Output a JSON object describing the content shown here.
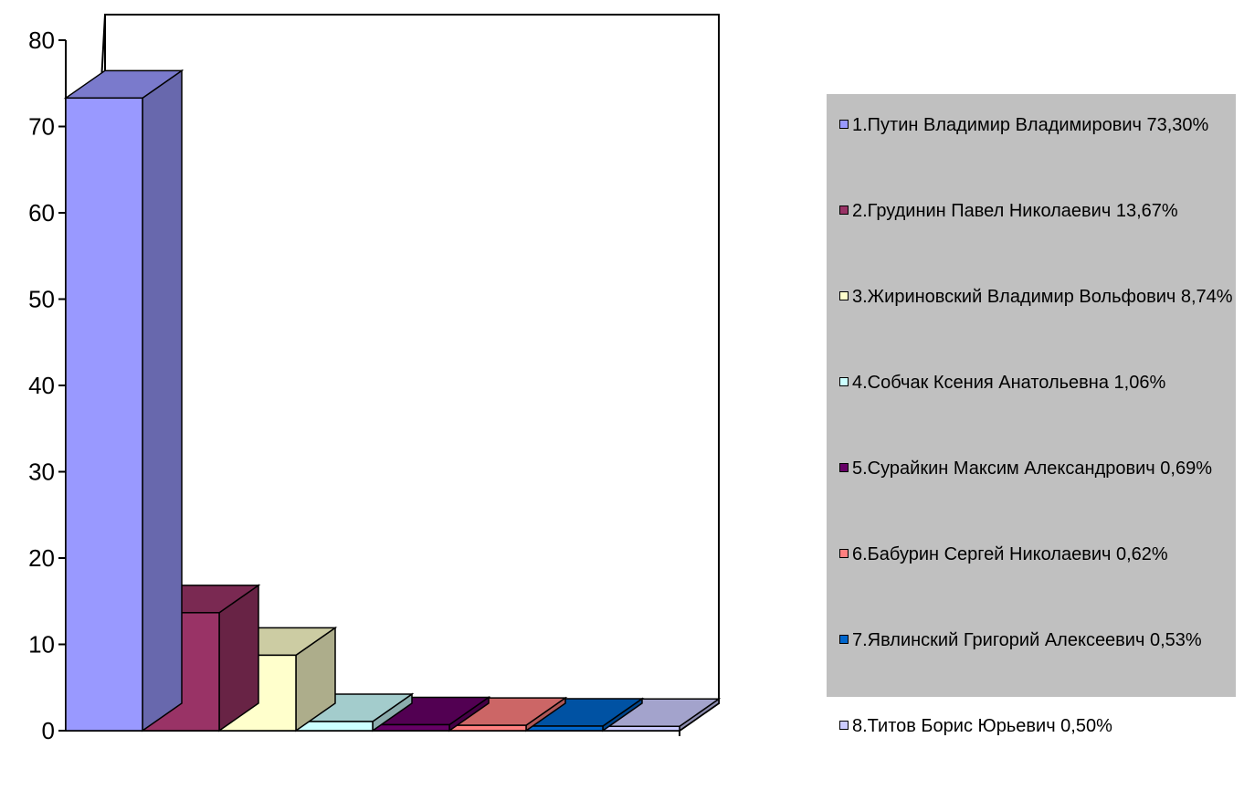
{
  "chart_data": {
    "type": "bar",
    "title": "",
    "xlabel": "",
    "ylabel": "",
    "ylim": [
      0,
      80
    ],
    "yticks": [
      0,
      10,
      20,
      30,
      40,
      50,
      60,
      70,
      80
    ],
    "grid": false,
    "legend_position": "right",
    "categories": [
      "1.Путин Владимир Владимирович 73,30%",
      "2.Грудинин Павел Николаевич 13,67%",
      "3.Жириновский Владимир Вольфович 8,74%",
      "4.Собчак Ксения Анатольевна 1,06%",
      "5.Сурайкин Максим Александрович 0,69%",
      "6.Бабурин Сергей Николаевич 0,62%",
      "7.Явлинский Григорий Алексеевич 0,53%",
      "8.Титов Борис Юрьевич 0,50%"
    ],
    "values": [
      73.3,
      13.67,
      8.74,
      1.06,
      0.69,
      0.62,
      0.53,
      0.5
    ],
    "colors": [
      "#9999ff",
      "#993366",
      "#ffffcc",
      "#ccffff",
      "#660066",
      "#ff8080",
      "#0066cc",
      "#ccccff"
    ]
  }
}
